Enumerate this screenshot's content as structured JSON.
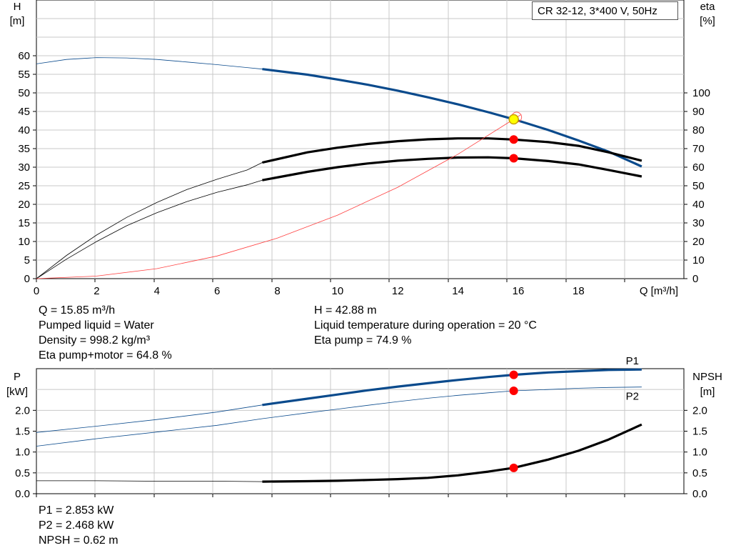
{
  "chart_data": [
    {
      "type": "line",
      "title": "CR 32-12, 3*400 V, 50Hz",
      "xlabel": "Q [m³/h]",
      "ylabel": "H [m]",
      "ylabel_line1": "H",
      "ylabel_line2": "[m]",
      "y2label_line1": "eta",
      "y2label_line2": "[%]",
      "xlim": [
        0,
        21.5
      ],
      "ylim": [
        0,
        75
      ],
      "y2lim": [
        0,
        150
      ],
      "x_ticks": [
        0,
        2,
        4,
        6,
        8,
        10,
        12,
        14,
        16,
        18
      ],
      "y_ticks": [
        0,
        5,
        10,
        15,
        20,
        25,
        30,
        35,
        40,
        45,
        50,
        55,
        60
      ],
      "y2_ticks": [
        0,
        10,
        20,
        30,
        40,
        50,
        60,
        70,
        80,
        90,
        100
      ],
      "grid": true,
      "series": [
        {
          "key": "head",
          "axis": "y",
          "color": "#0a4a8c",
          "x": [
            0,
            1,
            2,
            3,
            4,
            5,
            6,
            7,
            7.5
          ],
          "y": [
            57.8,
            59.0,
            59.5,
            59.4,
            59.0,
            58.3,
            57.6,
            56.8,
            56.4
          ],
          "bold_x": [
            7.5,
            9,
            10,
            11,
            12,
            13,
            14,
            15,
            15.85,
            17,
            18,
            19,
            20.1
          ],
          "bold_y": [
            56.4,
            54.9,
            53.6,
            52.2,
            50.6,
            48.8,
            46.9,
            44.8,
            42.9,
            40.0,
            37.2,
            34.2,
            30.2
          ]
        },
        {
          "key": "eta-pump",
          "axis": "y2",
          "color": "#000000",
          "x": [
            0,
            1,
            2,
            3,
            4,
            5,
            6,
            7,
            7.5
          ],
          "y": [
            0,
            12.5,
            23.5,
            33,
            41,
            48,
            53.5,
            58.5,
            62.5
          ],
          "bold_x": [
            7.5,
            9,
            10,
            11,
            12,
            13,
            14,
            15,
            15.85,
            17,
            18,
            19,
            20.1
          ],
          "bold_y": [
            62.5,
            68,
            70.5,
            72.5,
            74,
            75,
            75.5,
            75.5,
            74.9,
            73.5,
            71.5,
            68,
            63.5
          ]
        },
        {
          "key": "eta-pump-motor",
          "axis": "y2",
          "color": "#000000",
          "x": [
            0,
            1,
            2,
            3,
            4,
            5,
            6,
            7,
            7.5
          ],
          "y": [
            0,
            10.5,
            20,
            28.5,
            35.5,
            41.5,
            46.5,
            50.5,
            53
          ],
          "bold_x": [
            7.5,
            9,
            10,
            11,
            12,
            13,
            14,
            15,
            15.85,
            17,
            18,
            19,
            20.1
          ],
          "bold_y": [
            53,
            57.5,
            60,
            62,
            63.5,
            64.5,
            65.2,
            65.3,
            64.8,
            63.3,
            61.5,
            58.5,
            55
          ]
        },
        {
          "key": "system",
          "axis": "y",
          "color": "#ff4040",
          "x": [
            0,
            2,
            4,
            6,
            8,
            10,
            12,
            14,
            15.85,
            16.1
          ],
          "y": [
            0,
            0.7,
            2.7,
            6.1,
            10.9,
            17.1,
            24.6,
            33.5,
            42.9,
            44.2
          ],
          "bold_x": [],
          "bold_y": []
        }
      ],
      "points": [
        {
          "key": "duty",
          "x": 15.85,
          "y": 42.88,
          "axis": "y",
          "color": "#ffff00"
        },
        {
          "key": "eta-pump-point",
          "x": 15.85,
          "y": 74.9,
          "axis": "y2",
          "color": "#ff0000"
        },
        {
          "key": "eta-pump-motor-point",
          "x": 15.85,
          "y": 64.8,
          "axis": "y2",
          "color": "#ff0000"
        }
      ]
    },
    {
      "type": "line",
      "ylabel_line1": "P",
      "ylabel_line2": "[kW]",
      "y2label_line1": "NPSH",
      "y2label_line2": "[m]",
      "xlim": [
        0,
        21.5
      ],
      "ylim": [
        0,
        3.0
      ],
      "y2lim": [
        0,
        3.0
      ],
      "y_ticks": [
        0,
        0.5,
        1.0,
        1.5,
        2.0
      ],
      "y_tick_labels": [
        "0.0",
        "0.5",
        "1.0",
        "1.5",
        "2.0"
      ],
      "y2_ticks": [
        0,
        0.5,
        1.0,
        1.5,
        2.0
      ],
      "y2_tick_labels": [
        "0.0",
        "0.5",
        "1.0",
        "1.5",
        "2.0"
      ],
      "grid": true,
      "series": [
        {
          "key": "p1",
          "name": "P1",
          "axis": "y",
          "color": "#0a4a8c",
          "x": [
            0,
            2,
            4,
            6,
            7.5
          ],
          "y": [
            1.47,
            1.62,
            1.78,
            1.96,
            2.13
          ],
          "bold_x": [
            7.5,
            9,
            10,
            11,
            12,
            13,
            14,
            15,
            15.85,
            17,
            18,
            19,
            20.1
          ],
          "bold_y": [
            2.13,
            2.28,
            2.38,
            2.48,
            2.57,
            2.65,
            2.73,
            2.8,
            2.853,
            2.91,
            2.94,
            2.97,
            2.98
          ]
        },
        {
          "key": "p2",
          "name": "P2",
          "axis": "y",
          "color": "#0a4a8c",
          "x": [
            0,
            2,
            4,
            6,
            7.5,
            9,
            10,
            11,
            12,
            13,
            14,
            15,
            15.85,
            17,
            18,
            19,
            20.1
          ],
          "y": [
            1.14,
            1.32,
            1.48,
            1.64,
            1.8,
            1.94,
            2.03,
            2.12,
            2.21,
            2.29,
            2.36,
            2.42,
            2.468,
            2.5,
            2.53,
            2.55,
            2.56
          ],
          "bold_x": [],
          "bold_y": []
        },
        {
          "key": "npsh",
          "axis": "y2",
          "color": "#000000",
          "x": [
            0,
            2,
            4,
            6,
            7.5
          ],
          "y": [
            0.31,
            0.31,
            0.3,
            0.3,
            0.29
          ],
          "bold_x": [
            7.5,
            9,
            10,
            11,
            12,
            13,
            14,
            15,
            15.85,
            17,
            18,
            19,
            20.1
          ],
          "bold_y": [
            0.29,
            0.3,
            0.31,
            0.33,
            0.35,
            0.38,
            0.44,
            0.53,
            0.62,
            0.82,
            1.03,
            1.3,
            1.66
          ]
        }
      ],
      "points": [
        {
          "key": "p1-point",
          "x": 15.85,
          "y": 2.853,
          "axis": "y",
          "color": "#ff0000"
        },
        {
          "key": "p2-point",
          "x": 15.85,
          "y": 2.468,
          "axis": "y",
          "color": "#ff0000"
        },
        {
          "key": "npsh-point",
          "x": 15.85,
          "y": 0.62,
          "axis": "y2",
          "color": "#ff0000"
        }
      ]
    }
  ],
  "info_top_left": [
    "Q = 15.85 m³/h",
    "Pumped liquid = Water",
    "Density = 998.2 kg/m³",
    "Eta pump+motor = 64.8 %"
  ],
  "info_top_right": [
    "H = 42.88 m",
    "Liquid temperature during operation = 20 °C",
    "Eta pump = 74.9 %"
  ],
  "info_bottom_left": [
    "P1 = 2.853 kW",
    "P2 = 2.468 kW",
    "NPSH = 0.62 m"
  ]
}
